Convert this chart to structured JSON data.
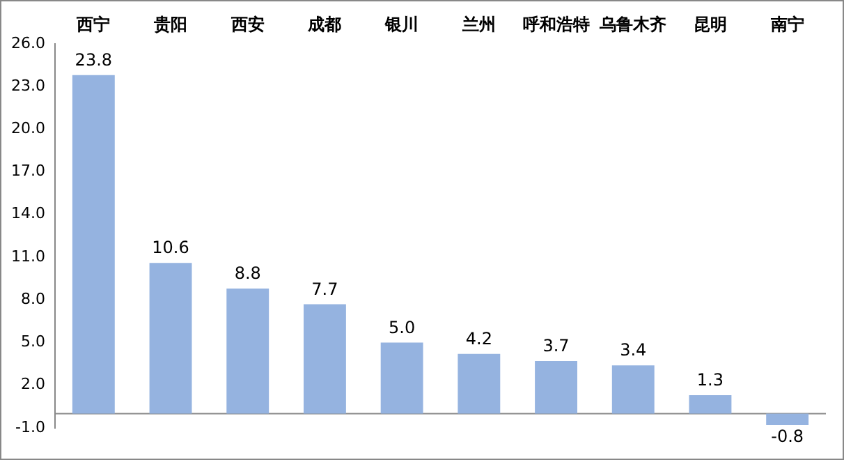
{
  "chart_data": {
    "type": "bar",
    "categories": [
      "西宁",
      "贵阳",
      "西安",
      "成都",
      "银川",
      "兰州",
      "呼和浩特",
      "乌鲁木齐",
      "昆明",
      "南宁"
    ],
    "values": [
      23.8,
      10.6,
      8.8,
      7.7,
      5.0,
      4.2,
      3.7,
      3.4,
      1.3,
      -0.8
    ],
    "value_labels": [
      "23.8",
      "10.6",
      "8.8",
      "7.7",
      "5.0",
      "4.2",
      "3.7",
      "3.4",
      "1.3",
      "-0.8"
    ],
    "color": "#95b3e0",
    "ylim": [
      -1,
      26
    ],
    "yticks": [
      {
        "value": -1,
        "label": "-1.0"
      },
      {
        "value": 2,
        "label": "2.0"
      },
      {
        "value": 5,
        "label": "5.0"
      },
      {
        "value": 8,
        "label": "8.0"
      },
      {
        "value": 11,
        "label": "11.0"
      },
      {
        "value": 14,
        "label": "14.0"
      },
      {
        "value": 17,
        "label": "17.0"
      },
      {
        "value": 20,
        "label": "20.0"
      },
      {
        "value": 23,
        "label": "23.0"
      },
      {
        "value": 26,
        "label": "26.0"
      }
    ],
    "grid": false,
    "legend": false
  }
}
